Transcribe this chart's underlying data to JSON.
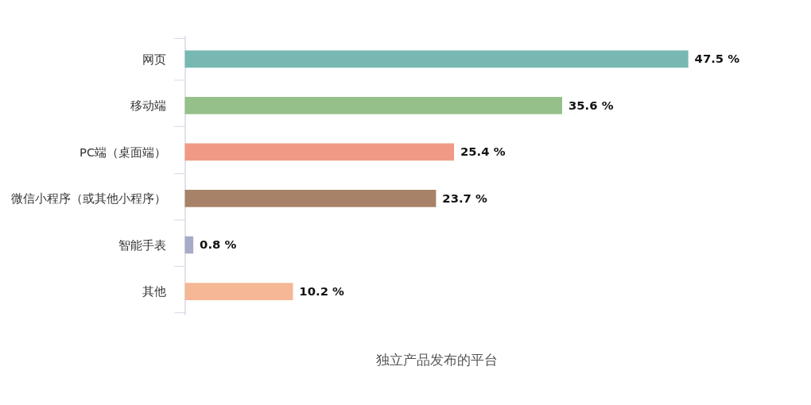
{
  "chart_data": {
    "type": "bar",
    "orientation": "horizontal",
    "xlabel": "独立产品发布的平台",
    "categories": [
      "网页",
      "移动端",
      "PC端（桌面端）",
      "微信小程序（或其他小程序）",
      "智能手表",
      "其他"
    ],
    "values": [
      47.5,
      35.6,
      25.4,
      23.7,
      0.8,
      10.2
    ],
    "colors": [
      "#77b8b3",
      "#96c08a",
      "#f09a85",
      "#a88268",
      "#a7abc8",
      "#f5b795"
    ],
    "value_labels": [
      "47.5 %",
      "35.6 %",
      "25.4 %",
      "23.7 %",
      "0.8 %",
      "10.2 %"
    ],
    "grid": false
  }
}
